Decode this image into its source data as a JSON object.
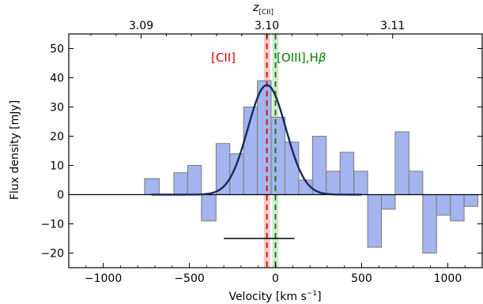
{
  "chart_data": {
    "type": "bar",
    "xlabel": "Velocity [km s",
    "xlabel_sup": "−1",
    "xlabel_tail": "]",
    "ylabel": "Flux density [mJy]",
    "top_axis_label_main": "z",
    "top_axis_label_sub": "[CII]",
    "xlim": [
      -1200,
      1200
    ],
    "ylim": [
      -25,
      55
    ],
    "x_ticks": [
      -1000,
      -500,
      0,
      500,
      1000
    ],
    "x_tick_labels": [
      "−1000",
      "−500",
      "0",
      "500",
      "1000"
    ],
    "y_ticks": [
      -20,
      -10,
      0,
      10,
      20,
      30,
      40,
      50
    ],
    "y_tick_labels": [
      "−20",
      "−10",
      "0",
      "10",
      "20",
      "30",
      "40",
      "50"
    ],
    "top_ticks": [
      -780,
      -50,
      680
    ],
    "top_tick_labels": [
      "3.09",
      "3.10",
      "3.11"
    ],
    "grid": false,
    "spectrum": {
      "bin_edges": [
        -760,
        -675,
        -590,
        -510,
        -430,
        -345,
        -265,
        -185,
        -105,
        -25,
        55,
        135,
        215,
        295,
        375,
        455,
        535,
        615,
        695,
        775,
        855,
        935,
        1015,
        1095,
        1175
      ],
      "values": [
        5.5,
        0,
        7.5,
        10,
        -9,
        17.5,
        14,
        30,
        39,
        26.5,
        18,
        5,
        20,
        8,
        14.5,
        8,
        -18,
        -5,
        21.5,
        8,
        -20,
        -7,
        -9,
        -4
      ]
    },
    "gaussian_fit": {
      "amplitude": 37.5,
      "center": -50,
      "sigma": 110,
      "x_range": [
        -720,
        500
      ]
    },
    "lines": [
      {
        "label": "[CII]",
        "velocity": -50,
        "color": "#dd0000",
        "band_halfwidth": 18,
        "band_color": "#f4a0a0"
      },
      {
        "label": "[OIII],H",
        "label_greek": "β",
        "velocity": 0,
        "color": "#008000",
        "band_halfwidth": 18,
        "band_color": "#a8d8a8"
      }
    ],
    "resolution_bar": {
      "x_start": -300,
      "x_end": 110,
      "y": -15
    },
    "colors": {
      "hist_fill": "#a3b4ee",
      "hist_edge": "#7a7a7a",
      "fit": "#1a2a55",
      "baseline": "#000000"
    }
  }
}
